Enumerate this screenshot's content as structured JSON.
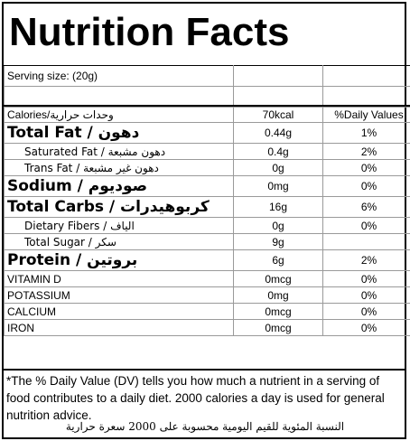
{
  "title": "Nutrition Facts",
  "serving": "Serving size:  (20g)",
  "header": {
    "label": "Calories/وحدات حرارية",
    "amount": "70kcal",
    "dv": "%Daily Values"
  },
  "rows": [
    {
      "name": "Total Fat / دهون",
      "amount": "0.44g",
      "dv": "1%"
    },
    {
      "name": "Saturated Fat / دهون مشبعة",
      "amount": "0.4g",
      "dv": "2%"
    },
    {
      "name": "Trans Fat / دهون غير مشبعة",
      "amount": "0g",
      "dv": "0%"
    },
    {
      "name": "Sodium / صوديوم",
      "amount": "0mg",
      "dv": "0%"
    },
    {
      "name": "Total Carbs / كربوهيدرات",
      "amount": "16g",
      "dv": "6%"
    },
    {
      "name": "Dietary Fibers / الياف",
      "amount": "0g",
      "dv": "0%"
    },
    {
      "name": "Total Sugar / سكر",
      "amount": "9g",
      "dv": ""
    },
    {
      "name": "Protein / بروتين",
      "amount": "6g",
      "dv": "2%"
    },
    {
      "name": "VITAMIN D",
      "amount": "0mcg",
      "dv": "0%"
    },
    {
      "name": "POTASSIUM",
      "amount": "0mg",
      "dv": "0%"
    },
    {
      "name": "CALCIUM",
      "amount": "0mcg",
      "dv": "0%"
    },
    {
      "name": "IRON",
      "amount": "0mcg",
      "dv": "0%"
    }
  ],
  "footnote": "*The % Daily Value (DV) tells you how much a nutrient in a serving of food contributes to a daily diet. 2000 calories a day is used for general nutrition advice.",
  "footnote_ar": "النسبة المئوية للقيم اليومية محسوبة على 2000 سعرة حرارية"
}
